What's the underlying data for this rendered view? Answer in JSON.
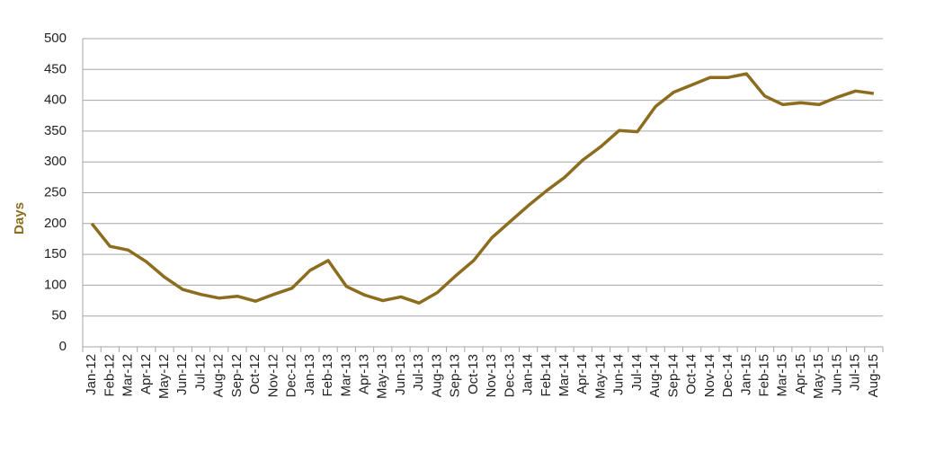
{
  "chart_data": {
    "type": "line",
    "y_label": "Days",
    "categories": [
      "Jan-12",
      "Feb-12",
      "Mar-12",
      "Apr-12",
      "May-12",
      "Jun-12",
      "Jul-12",
      "Aug-12",
      "Sep-12",
      "Oct-12",
      "Nov-12",
      "Dec-12",
      "Jan-13",
      "Feb-13",
      "Mar-13",
      "Apr-13",
      "May-13",
      "Jun-13",
      "Jul-13",
      "Aug-13",
      "Sep-13",
      "Oct-13",
      "Nov-13",
      "Dec-13",
      "Jan-14",
      "Feb-14",
      "Mar-14",
      "Apr-14",
      "May-14",
      "Jun-14",
      "Jul-14",
      "Aug-14",
      "Sep-14",
      "Oct-14",
      "Nov-14",
      "Dec-14",
      "Jan-15",
      "Feb-15",
      "Mar-15",
      "Apr-15",
      "May-15",
      "Jun-15",
      "Jul-15",
      "Aug-15"
    ],
    "values": [
      200,
      163,
      157,
      138,
      113,
      93,
      85,
      79,
      82,
      74,
      85,
      95,
      124,
      140,
      98,
      84,
      75,
      81,
      71,
      88,
      115,
      140,
      177,
      203,
      229,
      253,
      275,
      303,
      325,
      351,
      349,
      390,
      413,
      425,
      437,
      437,
      443,
      407,
      393,
      396,
      393,
      405,
      415,
      411
    ],
    "color": "#8c6d1f",
    "ylim": [
      0,
      500
    ],
    "yticks": [
      0,
      50,
      100,
      150,
      200,
      250,
      300,
      350,
      400,
      450,
      500
    ],
    "grid": true
  }
}
